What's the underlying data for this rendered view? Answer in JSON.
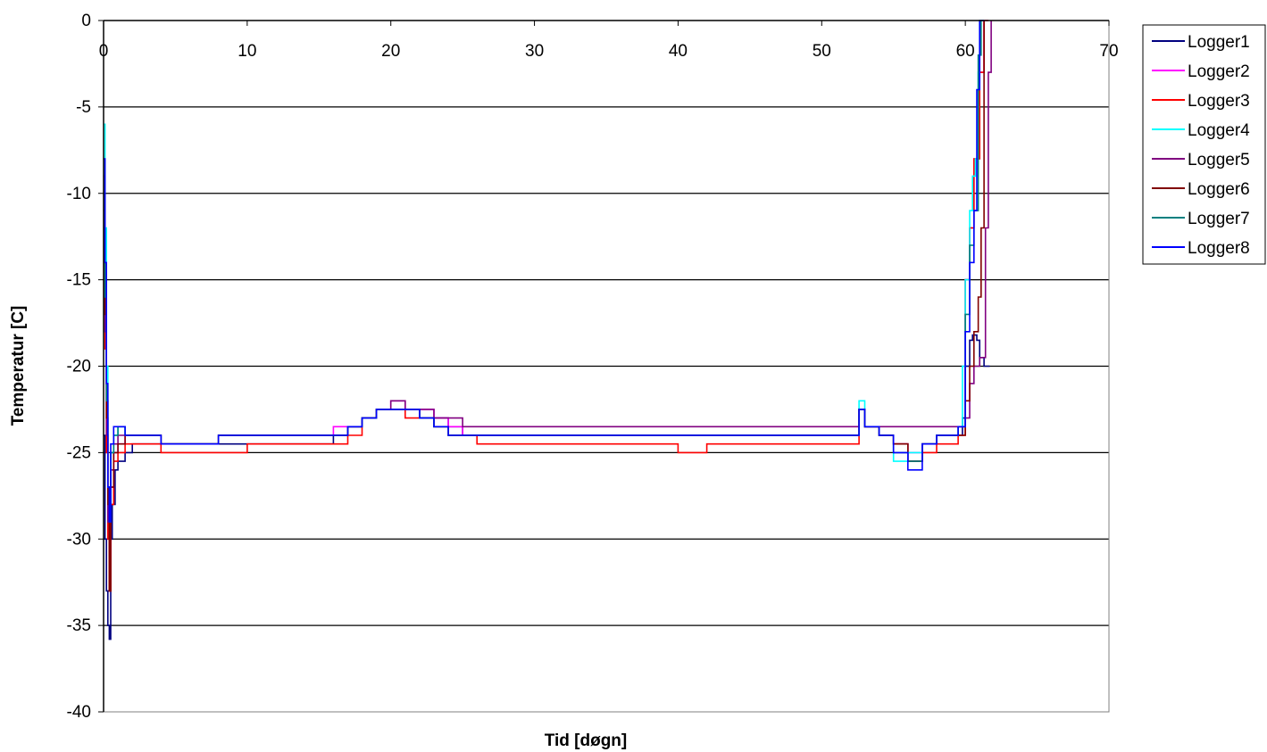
{
  "chart_data": {
    "type": "line",
    "title": "",
    "xlabel": "Tid [døgn]",
    "ylabel": "Temperatur [C]",
    "xlim": [
      0,
      70
    ],
    "ylim": [
      -40,
      0
    ],
    "x_ticks": [
      0,
      10,
      20,
      30,
      40,
      50,
      60,
      70
    ],
    "y_ticks": [
      0,
      -5,
      -10,
      -15,
      -20,
      -25,
      -30,
      -35,
      -40
    ],
    "x_tick_labels": [
      "0",
      "10",
      "20",
      "30",
      "40",
      "50",
      "60",
      "70"
    ],
    "y_tick_labels": [
      "0",
      "-5",
      "-10",
      "-15",
      "-20",
      "-25",
      "-30",
      "-35",
      "-40"
    ],
    "grid": "horizontal",
    "legend_position": "right",
    "series": [
      {
        "name": "Logger1",
        "color": "#000080",
        "x": [
          0,
          0.1,
          0.2,
          0.3,
          0.4,
          0.5,
          0.6,
          0.8,
          1.0,
          1.5,
          2.0,
          3,
          4,
          5,
          6,
          8,
          10,
          12,
          14,
          15,
          16,
          17,
          18,
          19,
          20,
          21,
          22,
          23,
          24,
          25,
          26,
          28,
          30,
          32,
          35,
          38,
          40,
          42,
          45,
          48,
          50,
          52,
          52.6,
          53,
          54,
          55,
          56,
          56.5,
          57,
          58,
          59,
          59.5,
          59.8,
          60,
          60.3,
          60.5,
          60.8,
          61,
          61.3,
          61.5,
          61.7
        ],
        "y": [
          -24,
          -30,
          -33,
          -35,
          -35.8,
          -30,
          -28,
          -26,
          -25.5,
          -25,
          -24.5,
          -24.5,
          -24.5,
          -24.5,
          -24.5,
          -24.5,
          -24.5,
          -24.5,
          -24.5,
          -24.5,
          -24,
          -23.5,
          -23,
          -22.5,
          -22.5,
          -22.5,
          -23,
          -23,
          -23.5,
          -24,
          -24,
          -24,
          -24,
          -24,
          -24,
          -24,
          -24,
          -24,
          -24,
          -24,
          -24,
          -24,
          -22.5,
          -23.5,
          -24,
          -24.5,
          -25.5,
          -25.5,
          -24.5,
          -24,
          -24,
          -24,
          -23,
          -20,
          -18.5,
          -18.2,
          -18.5,
          -19.5,
          -20,
          -20,
          -20
        ]
      },
      {
        "name": "Logger2",
        "color": "#ff00ff",
        "x": [
          0,
          0.1,
          0.2,
          0.3,
          0.4,
          0.5,
          0.7,
          1.0,
          1.5,
          2,
          3,
          4,
          5,
          6,
          8,
          10,
          12,
          14,
          15,
          16,
          17,
          18,
          19,
          20,
          21,
          22,
          23,
          24,
          25,
          26,
          28,
          30,
          32,
          35,
          38,
          40,
          42,
          45,
          48,
          50,
          52,
          52.6,
          53,
          54,
          55,
          56,
          57,
          58,
          59,
          59.5,
          60,
          60.3,
          60.6,
          61,
          61.3,
          61.6
        ],
        "y": [
          -9,
          -15,
          -22,
          -28,
          -31,
          -27,
          -25,
          -24.5,
          -24,
          -24,
          -24,
          -24.5,
          -24.5,
          -24.5,
          -24,
          -24,
          -24,
          -24,
          -24,
          -23.5,
          -23.5,
          -23,
          -22.5,
          -22,
          -22.5,
          -22.5,
          -23,
          -23.5,
          -24,
          -24,
          -24,
          -24,
          -24,
          -24,
          -24,
          -24,
          -24,
          -24,
          -24,
          -24,
          -24,
          -22.5,
          -23.5,
          -24,
          -24.5,
          -25,
          -24.5,
          -24,
          -24,
          -23.5,
          -15,
          -12,
          -8,
          -3,
          0,
          0
        ]
      },
      {
        "name": "Logger3",
        "color": "#ff0000",
        "x": [
          0,
          0.1,
          0.2,
          0.3,
          0.4,
          0.5,
          0.7,
          1.0,
          1.5,
          2,
          3,
          4,
          5,
          6,
          8,
          10,
          12,
          14,
          16,
          17,
          18,
          19,
          20,
          21,
          22,
          23,
          24,
          25,
          26,
          28,
          30,
          32,
          35,
          38,
          40,
          42,
          45,
          48,
          50,
          52,
          52.6,
          53,
          54,
          55,
          56,
          57,
          58,
          59,
          59.5,
          60,
          60.3,
          60.6,
          61,
          61.3,
          61.6
        ],
        "y": [
          -14,
          -19,
          -25,
          -30,
          -33,
          -28,
          -25.5,
          -25,
          -24.5,
          -24.5,
          -24.5,
          -25,
          -25,
          -25,
          -25,
          -24.5,
          -24.5,
          -24.5,
          -24.5,
          -24,
          -23,
          -22.5,
          -22.5,
          -23,
          -23,
          -23.5,
          -24,
          -24,
          -24.5,
          -24.5,
          -24.5,
          -24.5,
          -24.5,
          -24.5,
          -25,
          -24.5,
          -24.5,
          -24.5,
          -24.5,
          -24.5,
          -22.5,
          -23.5,
          -24,
          -24.5,
          -25.5,
          -25,
          -24.5,
          -24.5,
          -24,
          -15,
          -12,
          -8,
          -3,
          0,
          0
        ]
      },
      {
        "name": "Logger4",
        "color": "#00ffff",
        "x": [
          0,
          0.1,
          0.2,
          0.3,
          0.4,
          0.5,
          0.7,
          1.0,
          1.5,
          2,
          3,
          4,
          5,
          6,
          8,
          10,
          12,
          14,
          16,
          17,
          18,
          19,
          20,
          21,
          22,
          23,
          24,
          25,
          26,
          28,
          30,
          32,
          35,
          38,
          40,
          42,
          45,
          48,
          50,
          52,
          52.6,
          53,
          54,
          55,
          56,
          57,
          58,
          59,
          59.5,
          59.8,
          60,
          60.3,
          60.5,
          60.7,
          60.9,
          61,
          61.3
        ],
        "y": [
          -6,
          -12,
          -20,
          -27,
          -29,
          -25,
          -24,
          -23.5,
          -24,
          -24,
          -24,
          -24.5,
          -24.5,
          -24.5,
          -24,
          -24,
          -24,
          -24,
          -24,
          -23.5,
          -23,
          -22.5,
          -22.5,
          -22.5,
          -23,
          -23.5,
          -24,
          -24,
          -24,
          -24,
          -24,
          -24,
          -24,
          -24,
          -24,
          -24,
          -24,
          -24,
          -24,
          -24,
          -22,
          -23.5,
          -24,
          -25.5,
          -25,
          -24.5,
          -24,
          -24,
          -23.5,
          -20,
          -15,
          -11,
          -9,
          -8,
          -3,
          0,
          0
        ]
      },
      {
        "name": "Logger5",
        "color": "#800080",
        "x": [
          0,
          0.1,
          0.2,
          0.3,
          0.4,
          0.5,
          0.7,
          1.0,
          1.5,
          2,
          3,
          4,
          5,
          6,
          8,
          10,
          12,
          14,
          16,
          17,
          18,
          19,
          20,
          21,
          22,
          23,
          24,
          25,
          26,
          28,
          30,
          32,
          35,
          38,
          40,
          42,
          45,
          48,
          50,
          52,
          52.6,
          53,
          54,
          55,
          56,
          57,
          58,
          59,
          59.5,
          60,
          60.3,
          60.6,
          61,
          61.2,
          61.4,
          61.6,
          61.8
        ],
        "y": [
          -12,
          -18,
          -24,
          -29,
          -30,
          -26,
          -24.5,
          -24,
          -24,
          -24,
          -24,
          -24.5,
          -24.5,
          -24.5,
          -24,
          -24,
          -24,
          -24,
          -24,
          -23.5,
          -23,
          -22.5,
          -22,
          -22.5,
          -22.5,
          -23,
          -23,
          -23.5,
          -23.5,
          -23.5,
          -23.5,
          -23.5,
          -23.5,
          -23.5,
          -23.5,
          -23.5,
          -23.5,
          -23.5,
          -23.5,
          -23.5,
          -22.5,
          -23.5,
          -23.5,
          -23.5,
          -23.5,
          -23.5,
          -23.5,
          -23.5,
          -23.5,
          -23,
          -21,
          -20,
          -19.5,
          -19.5,
          -12,
          -3,
          0
        ]
      },
      {
        "name": "Logger6",
        "color": "#800000",
        "x": [
          0,
          0.1,
          0.2,
          0.3,
          0.4,
          0.5,
          0.7,
          1.0,
          1.5,
          2,
          3,
          4,
          5,
          6,
          8,
          10,
          12,
          14,
          16,
          17,
          18,
          19,
          20,
          21,
          22,
          23,
          24,
          25,
          26,
          28,
          30,
          32,
          35,
          38,
          40,
          42,
          45,
          48,
          50,
          52,
          52.6,
          53,
          54,
          55,
          56,
          57,
          58,
          59,
          59.5,
          60,
          60.3,
          60.6,
          60.9,
          61.1,
          61.3
        ],
        "y": [
          -11,
          -17,
          -23,
          -28,
          -33,
          -27,
          -25,
          -24.5,
          -24,
          -24,
          -24,
          -24.5,
          -24.5,
          -24.5,
          -24,
          -24,
          -24,
          -24,
          -24,
          -23.5,
          -23,
          -22.5,
          -22.5,
          -22.5,
          -23,
          -23.5,
          -24,
          -24,
          -24,
          -24,
          -24,
          -24,
          -24,
          -24,
          -24,
          -24,
          -24,
          -24,
          -24,
          -24,
          -22.5,
          -23.5,
          -24,
          -24.5,
          -25.5,
          -24.5,
          -24,
          -24,
          -24,
          -22,
          -20,
          -18,
          -16,
          -12,
          0
        ]
      },
      {
        "name": "Logger7",
        "color": "#008080",
        "x": [
          0,
          0.1,
          0.2,
          0.3,
          0.4,
          0.5,
          0.7,
          1.0,
          1.5,
          2,
          3,
          4,
          5,
          6,
          8,
          10,
          12,
          14,
          16,
          17,
          18,
          19,
          20,
          21,
          22,
          23,
          24,
          25,
          26,
          28,
          30,
          32,
          35,
          38,
          40,
          42,
          45,
          48,
          50,
          52,
          52.6,
          53,
          54,
          55,
          56,
          57,
          58,
          59,
          59.5,
          60,
          60.3,
          60.6,
          60.9,
          61.1,
          61.3
        ],
        "y": [
          -10,
          -16,
          -22,
          -27,
          -29,
          -25,
          -24,
          -23.5,
          -24,
          -24,
          -24,
          -24.5,
          -24.5,
          -24.5,
          -24,
          -24,
          -24,
          -24,
          -24,
          -23.5,
          -23,
          -22.5,
          -22.5,
          -22.5,
          -23,
          -23.5,
          -24,
          -24,
          -24,
          -24,
          -24,
          -24,
          -24,
          -24,
          -24,
          -24,
          -24,
          -24,
          -24,
          -24,
          -22.5,
          -23.5,
          -24,
          -25,
          -25.5,
          -24.5,
          -24,
          -24,
          -23.5,
          -17,
          -13,
          -11,
          -2,
          0,
          0
        ]
      },
      {
        "name": "Logger8",
        "color": "#0000ff",
        "x": [
          0,
          0.1,
          0.2,
          0.3,
          0.4,
          0.5,
          0.7,
          1.0,
          1.5,
          2,
          3,
          4,
          5,
          6,
          8,
          10,
          12,
          14,
          16,
          17,
          18,
          19,
          20,
          21,
          22,
          23,
          24,
          25,
          26,
          28,
          30,
          32,
          35,
          38,
          40,
          42,
          45,
          48,
          50,
          52,
          52.6,
          53,
          54,
          55,
          56,
          57,
          58,
          59,
          59.5,
          60,
          60.3,
          60.6,
          60.8,
          61,
          61.3
        ],
        "y": [
          -8,
          -14,
          -21,
          -27,
          -29,
          -24.5,
          -23.5,
          -23.5,
          -24,
          -24,
          -24,
          -24.5,
          -24.5,
          -24.5,
          -24,
          -24,
          -24,
          -24,
          -24,
          -23.5,
          -23,
          -22.5,
          -22.5,
          -22.5,
          -23,
          -23.5,
          -24,
          -24,
          -24,
          -24,
          -24,
          -24,
          -24,
          -24,
          -24,
          -24,
          -24,
          -24,
          -24,
          -24,
          -22.5,
          -23.5,
          -24,
          -25,
          -26,
          -24.5,
          -24,
          -24,
          -23.5,
          -18,
          -14,
          -11,
          -4,
          0,
          0
        ]
      }
    ]
  }
}
